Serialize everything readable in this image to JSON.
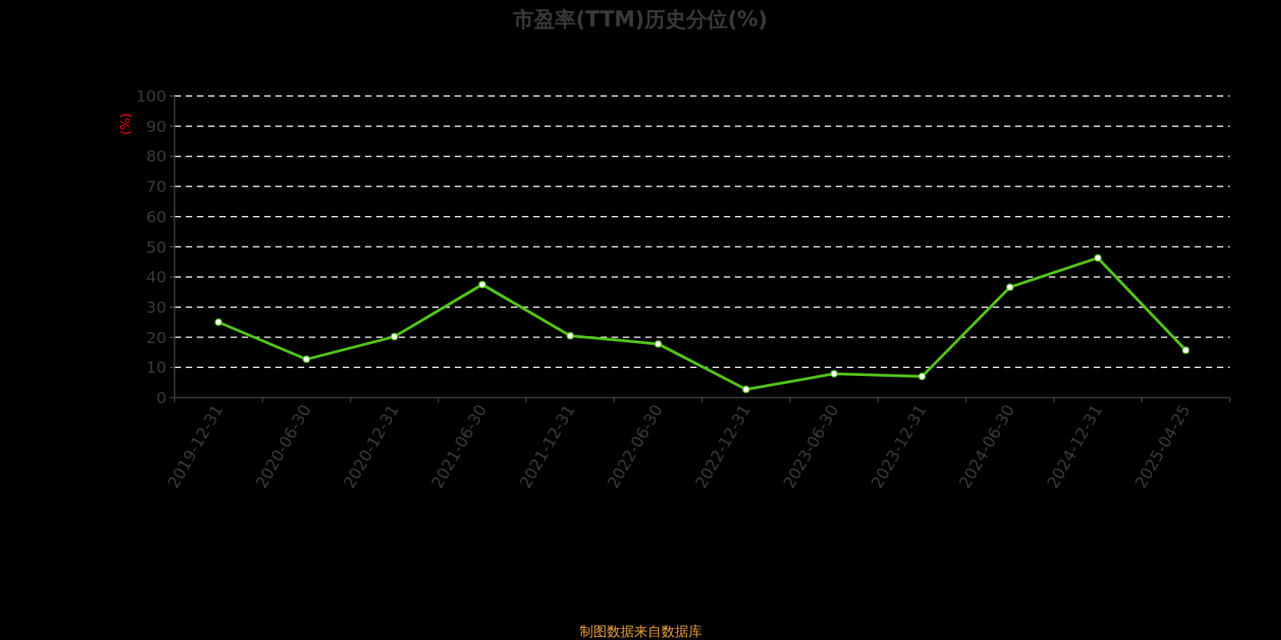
{
  "chart_data": {
    "type": "line",
    "title": "市盈率(TTM)历史分位(%)",
    "ylabel": "(%)",
    "categories": [
      "2019-12-31",
      "2020-06-30",
      "2020-12-31",
      "2021-06-30",
      "2021-12-31",
      "2022-06-30",
      "2022-12-31",
      "2023-06-30",
      "2023-12-31",
      "2024-06-30",
      "2024-12-31",
      "2025-04-25"
    ],
    "series": [
      {
        "color": "#52c41a",
        "values": [
          25,
          12.7,
          20.2,
          37.5,
          20.5,
          17.8,
          2.7,
          7.9,
          7.0,
          36.6,
          46.3,
          15.7
        ]
      }
    ],
    "ylim": [
      0,
      100
    ],
    "yticks": [
      0,
      10,
      20,
      30,
      40,
      50,
      60,
      70,
      80,
      90,
      100
    ],
    "grid": "y",
    "marker": "circle",
    "line_style": "solid",
    "annotations": [
      "制图数据来自数据库"
    ]
  }
}
